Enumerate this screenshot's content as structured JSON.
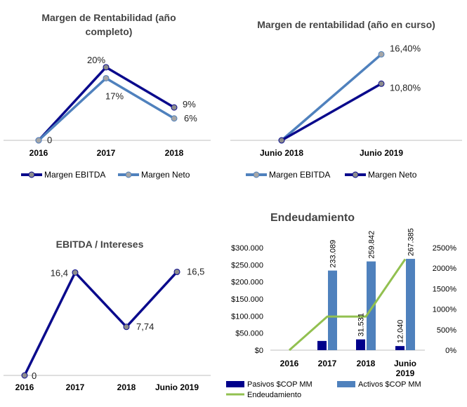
{
  "colors": {
    "dark_blue": "#0a0a8c",
    "light_blue": "#4f81bd",
    "marker_gray": "#8c8c8c",
    "green": "#92c050",
    "bar_dark": "#00008b",
    "bar_light": "#4f81bd",
    "axis": "#bfbfbf"
  },
  "chart_data": [
    {
      "type": "line",
      "title_line1": "Margen de Rentabilidad (año",
      "title_line2": "completo)",
      "categories": [
        "2016",
        "2017",
        "2018"
      ],
      "series": [
        {
          "name": "Margen EBITDA",
          "values": [
            0,
            20,
            9
          ],
          "labels": [
            "0",
            "20%",
            "9%"
          ],
          "color": "#0a0a8c"
        },
        {
          "name": "Margen Neto",
          "values": [
            0,
            17,
            6
          ],
          "labels": [
            "",
            "17%",
            "6%"
          ],
          "color": "#4f81bd"
        }
      ],
      "ylim": [
        0,
        24
      ],
      "legend": "bottom"
    },
    {
      "type": "line",
      "title": "Margen de rentabilidad (año en curso)",
      "categories": [
        "Junio 2018",
        "Junio 2019"
      ],
      "series": [
        {
          "name": "Margen EBITDA",
          "values": [
            0,
            16.4
          ],
          "labels": [
            "",
            "16,40%"
          ],
          "color": "#4f81bd"
        },
        {
          "name": "Margen Neto",
          "values": [
            0,
            10.8
          ],
          "labels": [
            "",
            "10,80%"
          ],
          "color": "#0a0a8c"
        }
      ],
      "ylim": [
        0,
        19
      ],
      "legend": "bottom"
    },
    {
      "type": "line",
      "title": "EBITDA / Intereses",
      "categories": [
        "2016",
        "2017",
        "2018",
        "Junio 2019"
      ],
      "series": [
        {
          "values": [
            0,
            16.4,
            7.74,
            16.5
          ],
          "labels": [
            "0",
            "16,4",
            "7,74",
            "16,5"
          ],
          "color": "#0a0a8c"
        }
      ],
      "ylim": [
        0,
        18.9
      ]
    },
    {
      "type": "bar",
      "title": "Endeudamiento",
      "categories": [
        "2016",
        "2017",
        "2018",
        "Junio 2019"
      ],
      "category_lines": [
        [
          "2016"
        ],
        [
          "2017"
        ],
        [
          "2018"
        ],
        [
          "Junio",
          "2019"
        ]
      ],
      "series": [
        {
          "name": "Pasivos $COP MM",
          "values": [
            0,
            27000,
            31531,
            12040
          ],
          "labels": [
            "",
            "",
            "31.531",
            "12.040"
          ],
          "color": "#00008b"
        },
        {
          "name": "Activos $COP MM",
          "values": [
            0,
            233089,
            259842,
            267385
          ],
          "labels": [
            "",
            "233.089",
            "259.842",
            "267.385"
          ],
          "color": "#4f81bd"
        },
        {
          "name": "Endeudamiento",
          "type": "line",
          "axis": "right",
          "values": [
            0,
            820,
            820,
            2220
          ],
          "color": "#92c050"
        }
      ],
      "y_left": {
        "ticks": [
          "$0",
          "$50.000",
          "$100.000",
          "$150.000",
          "$200.000",
          "$250.000",
          "$300.000"
        ],
        "lim": [
          0,
          300000
        ]
      },
      "y_right": {
        "ticks": [
          "0%",
          "500%",
          "1000%",
          "1500%",
          "2000%",
          "2500%"
        ],
        "lim": [
          0,
          2500
        ]
      },
      "legend": "bottom"
    }
  ]
}
